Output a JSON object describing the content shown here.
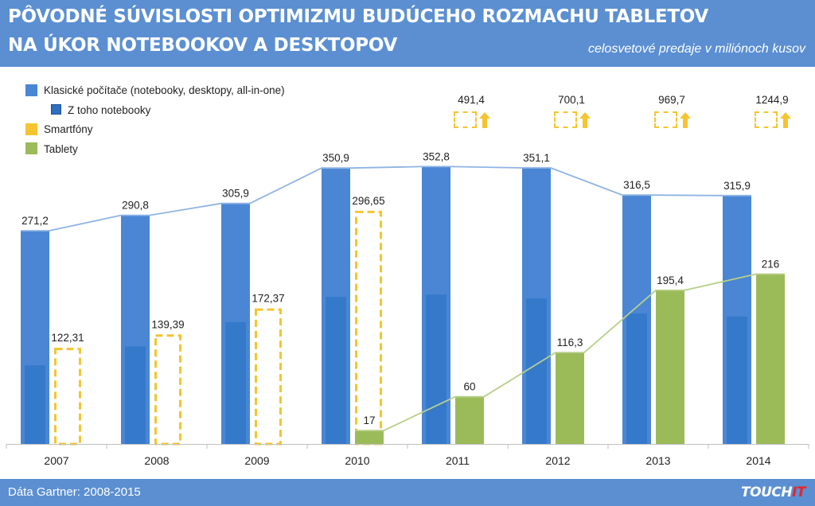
{
  "header": {
    "title_line1": "PÔVODNÉ SÚVISLOSTI OPTIMIZMU BUDÚCEHO ROZMACHU TABLETOV",
    "title_line2": "NA ÚKOR NOTEBOOKOV A DESKTOPOV",
    "subtitle": "celosvetové predaje v miliónoch kusov"
  },
  "footer": {
    "source": "Dáta Gartner: 2008-2015",
    "brand_main": "TOUCH",
    "brand_accent": "IT"
  },
  "legend": {
    "pc": "Klasické počítače (notebooky, desktopy, all-in-one)",
    "notebooks": "Z toho notebooky",
    "smartphones": "Smartfóny",
    "tablets": "Tablety"
  },
  "colors": {
    "header_bg": "#5b8fd2",
    "pc": "#4a86d4",
    "notebooks": "#3579cb",
    "smartphones": "#f5c430",
    "tablets": "#9bbb59",
    "pc_line": "#8fb4e3",
    "tablet_line": "#b8cf8b",
    "brand_accent": "#e8232a"
  },
  "chart_data": {
    "type": "bar",
    "title": "PÔVODNÉ SÚVISLOSTI OPTIMIZMU BUDÚCEHO ROZMACHU TABLETOV NA ÚKOR NOTEBOOKOV A DESKTOPOV",
    "subtitle": "celosvetové predaje v miliónoch kusov",
    "xlabel": "",
    "ylabel": "",
    "ylim": [
      0,
      400
    ],
    "categories": [
      "2007",
      "2008",
      "2009",
      "2010",
      "2011",
      "2012",
      "2013",
      "2014"
    ],
    "series": [
      {
        "name": "Klasické počítače (notebooky, desktopy, all-in-one)",
        "values": [
          271.2,
          290.8,
          305.9,
          350.9,
          352.8,
          351.1,
          316.5,
          315.9
        ],
        "labels": [
          "271,2",
          "290,8",
          "305,9",
          "350,9",
          "352,8",
          "351,1",
          "316,5",
          "315,9"
        ],
        "connector_line": true
      },
      {
        "name": "Z toho notebooky",
        "values": [
          100,
          124,
          155,
          187,
          190,
          185,
          166,
          162
        ],
        "labels": []
      },
      {
        "name": "Smartfóny",
        "values": [
          122.31,
          139.39,
          172.37,
          296.65,
          null,
          null,
          null,
          null
        ],
        "labels": [
          "122,31",
          "139,39",
          "172,37",
          "296,65",
          null,
          null,
          null,
          null
        ],
        "style": "dashed-outline"
      },
      {
        "name": "Tablety",
        "values": [
          null,
          null,
          null,
          17,
          60,
          116.3,
          195.4,
          216
        ],
        "labels": [
          null,
          null,
          null,
          "17",
          "60",
          "116,3",
          "195,4",
          "216"
        ],
        "connector_line": true
      }
    ],
    "smartphone_forecasts": [
      {
        "category": "2011",
        "value": 491.4,
        "label": "491,4"
      },
      {
        "category": "2012",
        "value": 700.1,
        "label": "700,1"
      },
      {
        "category": "2013",
        "value": 969.7,
        "label": "969,7"
      },
      {
        "category": "2014",
        "value": 1244.9,
        "label": "1244,9"
      }
    ],
    "legend_position": "top-left",
    "grid": false
  }
}
